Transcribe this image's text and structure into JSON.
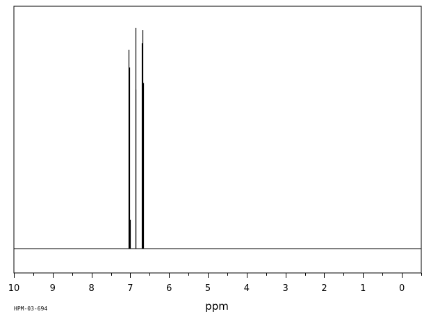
{
  "chart_data": {
    "type": "line",
    "xlabel": "ppm",
    "xlim": [
      10,
      -0.5
    ],
    "x_reversed": true,
    "ylim": [
      0,
      1
    ],
    "grid": false,
    "tick_labels": [
      "10",
      "9",
      "8",
      "7",
      "6",
      "5",
      "4",
      "3",
      "2",
      "1",
      "0"
    ],
    "tick_values": [
      10,
      9,
      8,
      7,
      6,
      5,
      4,
      3,
      2,
      1,
      0
    ],
    "minor_tick_step": 0.5,
    "spectrum_code": "HPM-03-694",
    "line_color": "#000000",
    "series": [
      {
        "peaks": [
          {
            "x": 7.04,
            "y": 0.9
          },
          {
            "x": 7.02,
            "y": 0.82
          },
          {
            "x": 7.0,
            "y": 0.13
          },
          {
            "x": 6.87,
            "y": 0.72
          },
          {
            "x": 6.86,
            "y": 1.0
          },
          {
            "x": 6.7,
            "y": 0.93
          },
          {
            "x": 6.68,
            "y": 0.99
          },
          {
            "x": 6.66,
            "y": 0.75
          }
        ]
      }
    ]
  }
}
